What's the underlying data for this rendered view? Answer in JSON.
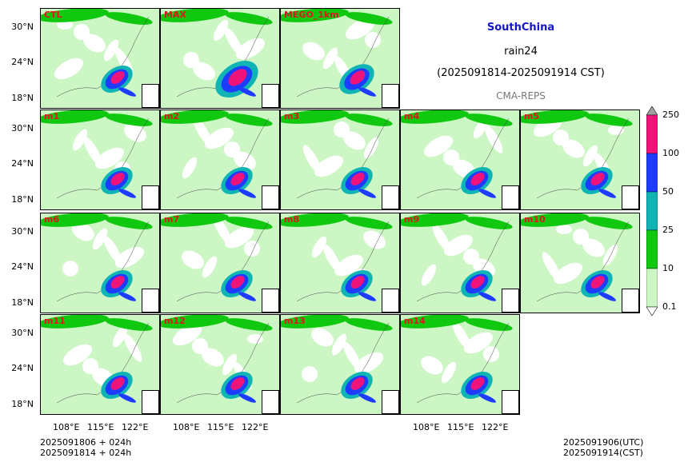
{
  "header": {
    "region": "SouthChina",
    "variable": "rain24",
    "period": "(2025091814-2025091914 CST)",
    "source": "CMA-REPS"
  },
  "colors": {
    "title": "#1414c8",
    "panel_label": "#e0161e"
  },
  "footer": {
    "init_utc": "2025091806  +  024h",
    "init_cst": "2025091814  +  024h",
    "valid_utc": "2025091906(UTC)",
    "valid_cst": "2025091914(CST)"
  },
  "chart_data": {
    "type": "heatmap",
    "map": "24-h accumulated precipitation, South China ensemble members",
    "panels": [
      "CTL",
      "MAX",
      "MEGO_1km",
      "m1",
      "m2",
      "m3",
      "m4",
      "m5",
      "m6",
      "m7",
      "m8",
      "m9",
      "m10",
      "m11",
      "m12",
      "m13",
      "m14"
    ],
    "panel_labels_shown": [
      "CTL",
      "MAX",
      "MEGO_1km",
      "m1",
      "m2",
      "m3",
      "m4",
      "m5",
      "m6",
      "m7",
      "m8",
      "m9",
      "m10",
      "m11",
      "m12",
      "m13",
      "m14"
    ],
    "y_ticks": [
      "30°N",
      "24°N",
      "18°N"
    ],
    "x_ticks": [
      "108°E",
      "115°E",
      "122°E"
    ],
    "lat_range": [
      16,
      33
    ],
    "lon_range": [
      103,
      125
    ],
    "colorbar": {
      "levels": [
        "0.1",
        "10",
        "25",
        "50",
        "100",
        "250"
      ],
      "colors": [
        "#ffffff",
        "#ccf7c4",
        "#10c810",
        "#10b4b4",
        "#1e3cff",
        "#f0147a",
        "#a0a0a0"
      ],
      "extend": "both"
    }
  }
}
